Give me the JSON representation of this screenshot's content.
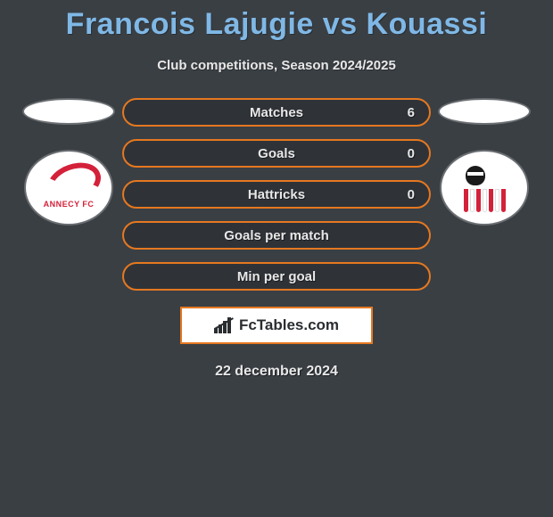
{
  "title": "Francois Lajugie vs Kouassi",
  "subtitle": "Club competitions, Season 2024/2025",
  "left_club": {
    "name": "ANNECY FC",
    "accent": "#d4213a"
  },
  "right_club": {
    "name": "AC Ajaccio",
    "accent": "#d4213a"
  },
  "stats": [
    {
      "label": "Matches",
      "value": "6"
    },
    {
      "label": "Goals",
      "value": "0"
    },
    {
      "label": "Hattricks",
      "value": "0"
    },
    {
      "label": "Goals per match",
      "value": ""
    },
    {
      "label": "Min per goal",
      "value": ""
    }
  ],
  "brand": "FcTables.com",
  "date": "22 december 2024",
  "colors": {
    "background": "#3a3f44",
    "title": "#7fb8e6",
    "text": "#e8e8e8",
    "pill_border": "#e67820",
    "pill_bg": "#2f3338"
  }
}
